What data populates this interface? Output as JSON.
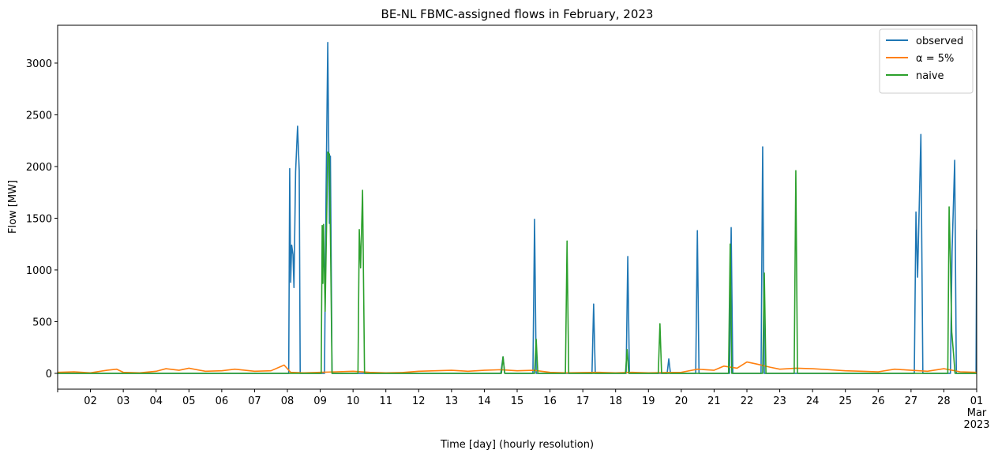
{
  "chart_data": {
    "type": "line",
    "title": "BE-NL FBMC-assigned flows in February, 2023",
    "x_label": "Time [day] (hourly resolution)",
    "y_label": "Flow [MW]",
    "xlim": [
      1,
      29
    ],
    "ylim": [
      -153,
      3366
    ],
    "xticks": [
      {
        "value": 1,
        "label": null
      },
      {
        "value": 2,
        "label": "02"
      },
      {
        "value": 3,
        "label": "03"
      },
      {
        "value": 4,
        "label": "04"
      },
      {
        "value": 5,
        "label": "05"
      },
      {
        "value": 6,
        "label": "06"
      },
      {
        "value": 7,
        "label": "07"
      },
      {
        "value": 8,
        "label": "08"
      },
      {
        "value": 9,
        "label": "09"
      },
      {
        "value": 10,
        "label": "10"
      },
      {
        "value": 11,
        "label": "11"
      },
      {
        "value": 12,
        "label": "12"
      },
      {
        "value": 13,
        "label": "13"
      },
      {
        "value": 14,
        "label": "14"
      },
      {
        "value": 15,
        "label": "15"
      },
      {
        "value": 16,
        "label": "16"
      },
      {
        "value": 17,
        "label": "17"
      },
      {
        "value": 18,
        "label": "18"
      },
      {
        "value": 19,
        "label": "19"
      },
      {
        "value": 20,
        "label": "20"
      },
      {
        "value": 21,
        "label": "21"
      },
      {
        "value": 22,
        "label": "22"
      },
      {
        "value": 23,
        "label": "23"
      },
      {
        "value": 24,
        "label": "24"
      },
      {
        "value": 25,
        "label": "25"
      },
      {
        "value": 26,
        "label": "26"
      },
      {
        "value": 27,
        "label": "27"
      },
      {
        "value": 28,
        "label": "28"
      },
      {
        "value": 29,
        "label": "01\nMar\n2023"
      }
    ],
    "yticks": [
      0,
      500,
      1000,
      1500,
      2000,
      2500,
      3000
    ],
    "legend": "upper right",
    "series": [
      {
        "name": "observed",
        "color": "#1f77b4",
        "x": [
          1,
          8.04,
          8.07,
          8.1,
          8.13,
          8.17,
          8.2,
          8.25,
          8.31,
          8.36,
          8.39,
          9.13,
          9.18,
          9.23,
          9.28,
          9.31,
          9.36,
          14.5,
          14.57,
          14.62,
          15.48,
          15.53,
          15.58,
          17.28,
          17.33,
          17.38,
          18.32,
          18.37,
          18.42,
          19.57,
          19.62,
          19.67,
          20.44,
          20.49,
          20.54,
          21.47,
          21.52,
          21.57,
          22.43,
          22.48,
          22.53,
          27.1,
          27.15,
          27.2,
          27.3,
          27.36,
          28.2,
          28.25,
          28.33,
          28.38,
          28.98,
          29
        ],
        "values": [
          0,
          0,
          1980,
          880,
          1240,
          1150,
          830,
          1950,
          2390,
          1960,
          0,
          0,
          1800,
          3200,
          1450,
          2100,
          0,
          0,
          160,
          0,
          0,
          1490,
          0,
          0,
          670,
          0,
          0,
          1130,
          0,
          0,
          140,
          0,
          0,
          1380,
          0,
          0,
          1410,
          0,
          0,
          2190,
          0,
          0,
          1560,
          930,
          2310,
          0,
          0,
          1180,
          2060,
          0,
          0,
          1390
        ]
      },
      {
        "name": "α = 5%",
        "color": "#ff7f0e",
        "x": [
          1,
          1.5,
          2,
          2.5,
          2.8,
          3,
          3.5,
          4,
          4.3,
          4.7,
          5,
          5.5,
          6,
          6.4,
          7,
          7.5,
          7.9,
          8.1,
          8.5,
          9,
          9.5,
          10,
          10.5,
          11,
          11.5,
          12,
          12.5,
          13,
          13.5,
          14,
          14.5,
          15,
          15.5,
          16,
          16.5,
          17,
          17.5,
          18,
          18.5,
          19,
          19.5,
          20,
          20.5,
          21,
          21.3,
          21.7,
          22,
          22.3,
          22.7,
          23,
          23.5,
          24,
          24.5,
          25,
          25.5,
          26,
          26.5,
          27,
          27.5,
          28,
          28.5,
          29
        ],
        "values": [
          10,
          15,
          5,
          30,
          40,
          10,
          5,
          20,
          45,
          30,
          50,
          20,
          25,
          40,
          20,
          25,
          80,
          10,
          5,
          10,
          15,
          20,
          10,
          5,
          8,
          20,
          25,
          30,
          20,
          30,
          35,
          25,
          30,
          10,
          5,
          8,
          10,
          5,
          10,
          5,
          8,
          10,
          40,
          30,
          70,
          50,
          110,
          90,
          60,
          40,
          50,
          45,
          35,
          25,
          20,
          15,
          40,
          30,
          20,
          45,
          15,
          10
        ]
      },
      {
        "name": "naive",
        "color": "#2ca02c",
        "x": [
          1,
          9.03,
          9.06,
          9.08,
          9.1,
          9.15,
          9.23,
          9.28,
          9.32,
          9.36,
          10.15,
          10.19,
          10.23,
          10.29,
          10.35,
          14.52,
          14.57,
          14.62,
          15.53,
          15.58,
          15.63,
          16.47,
          16.52,
          16.57,
          18.3,
          18.35,
          18.4,
          19.3,
          19.35,
          19.4,
          21.44,
          21.49,
          21.54,
          22.48,
          22.53,
          22.58,
          23.44,
          23.49,
          23.54,
          28.12,
          28.16,
          28.2,
          28.24,
          28.3,
          28.34,
          29
        ],
        "values": [
          0,
          0,
          1430,
          870,
          1440,
          600,
          2140,
          2120,
          1100,
          0,
          0,
          1390,
          1020,
          1770,
          0,
          0,
          160,
          0,
          0,
          330,
          0,
          0,
          1280,
          0,
          0,
          230,
          0,
          0,
          480,
          0,
          0,
          1250,
          0,
          0,
          970,
          0,
          0,
          1960,
          0,
          0,
          1610,
          1070,
          400,
          170,
          0,
          0
        ]
      }
    ]
  }
}
